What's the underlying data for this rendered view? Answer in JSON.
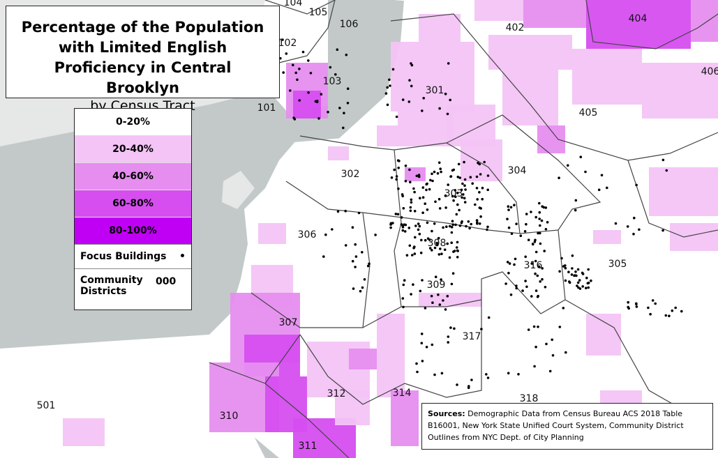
{
  "header": {
    "title": "Percentage of the Population with Limited English Proficiency in Central Brooklyn",
    "subtitle": "by Census Tract"
  },
  "legend": {
    "items": [
      {
        "label": "0-20%",
        "color": "#ffffff"
      },
      {
        "label": "20-40%",
        "color": "#f3c4f5"
      },
      {
        "label": "40-60%",
        "color": "#e68ef0"
      },
      {
        "label": "60-80%",
        "color": "#d64ef0"
      },
      {
        "label": "80-100%",
        "color": "#c000f5"
      }
    ],
    "focus": "Focus Buildings",
    "district_sample": "000",
    "districts": "Community Districts"
  },
  "map": {
    "district_labels": [
      "104",
      "105",
      "106",
      "102",
      "103",
      "101",
      "402",
      "404",
      "406",
      "301",
      "405",
      "302",
      "304",
      "303",
      "306",
      "308",
      "316",
      "305",
      "309",
      "307",
      "317",
      "312",
      "314",
      "318",
      "310",
      "501",
      "311"
    ]
  },
  "sources": {
    "label": "Sources:",
    "text": "Demographic Data from Census Bureau ACS 2018 Table B16001, New York State Unified Court System, Community District Outlines from NYC Dept. of City Planning"
  }
}
